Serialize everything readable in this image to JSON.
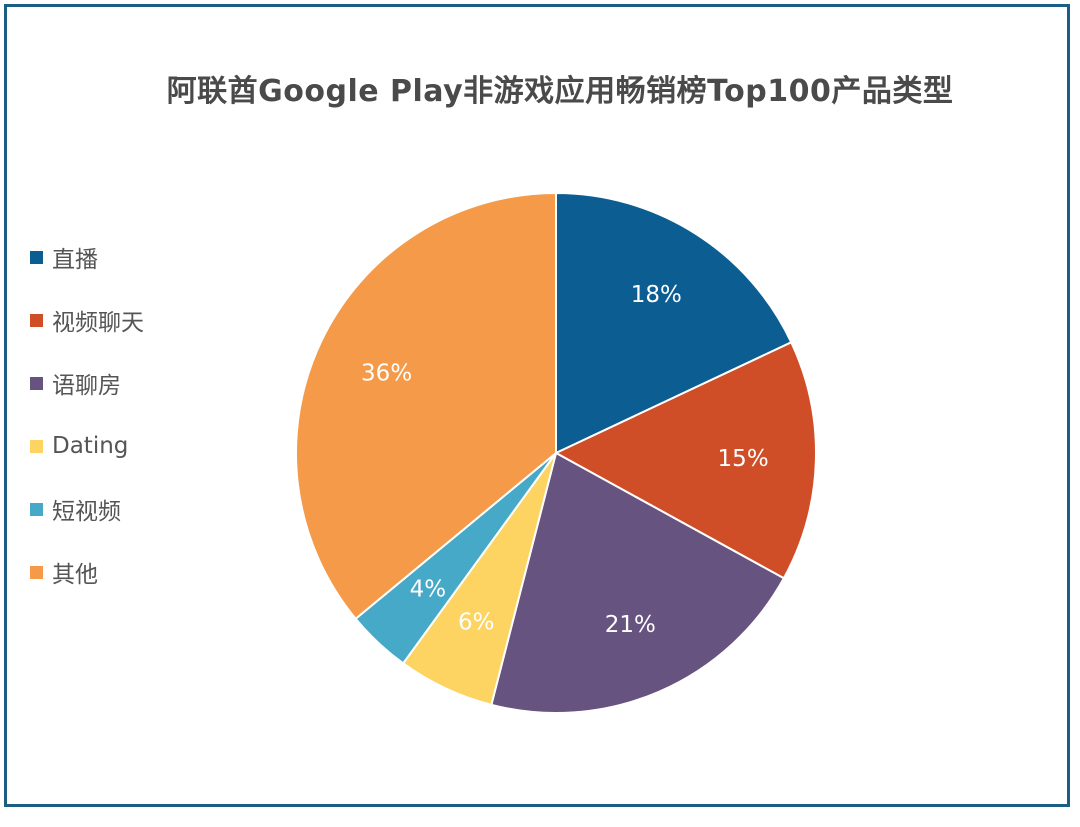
{
  "chart_data": {
    "type": "pie",
    "title": "阿联酋Google Play非游戏应用畅销榜Top100产品类型",
    "legend_position": "left",
    "slices": [
      {
        "name": "直播",
        "value": 18,
        "label": "18%",
        "color": "#0b5d92"
      },
      {
        "name": "视频聊天",
        "value": 15,
        "label": "15%",
        "color": "#d04e27"
      },
      {
        "name": "语聊房",
        "value": 21,
        "label": "21%",
        "color": "#67537f"
      },
      {
        "name": "Dating",
        "value": 6,
        "label": "6%",
        "color": "#fdd462"
      },
      {
        "name": "短视频",
        "value": 4,
        "label": "4%",
        "color": "#45a9c7"
      },
      {
        "name": "其他",
        "value": 36,
        "label": "36%",
        "color": "#f49a48"
      }
    ]
  }
}
